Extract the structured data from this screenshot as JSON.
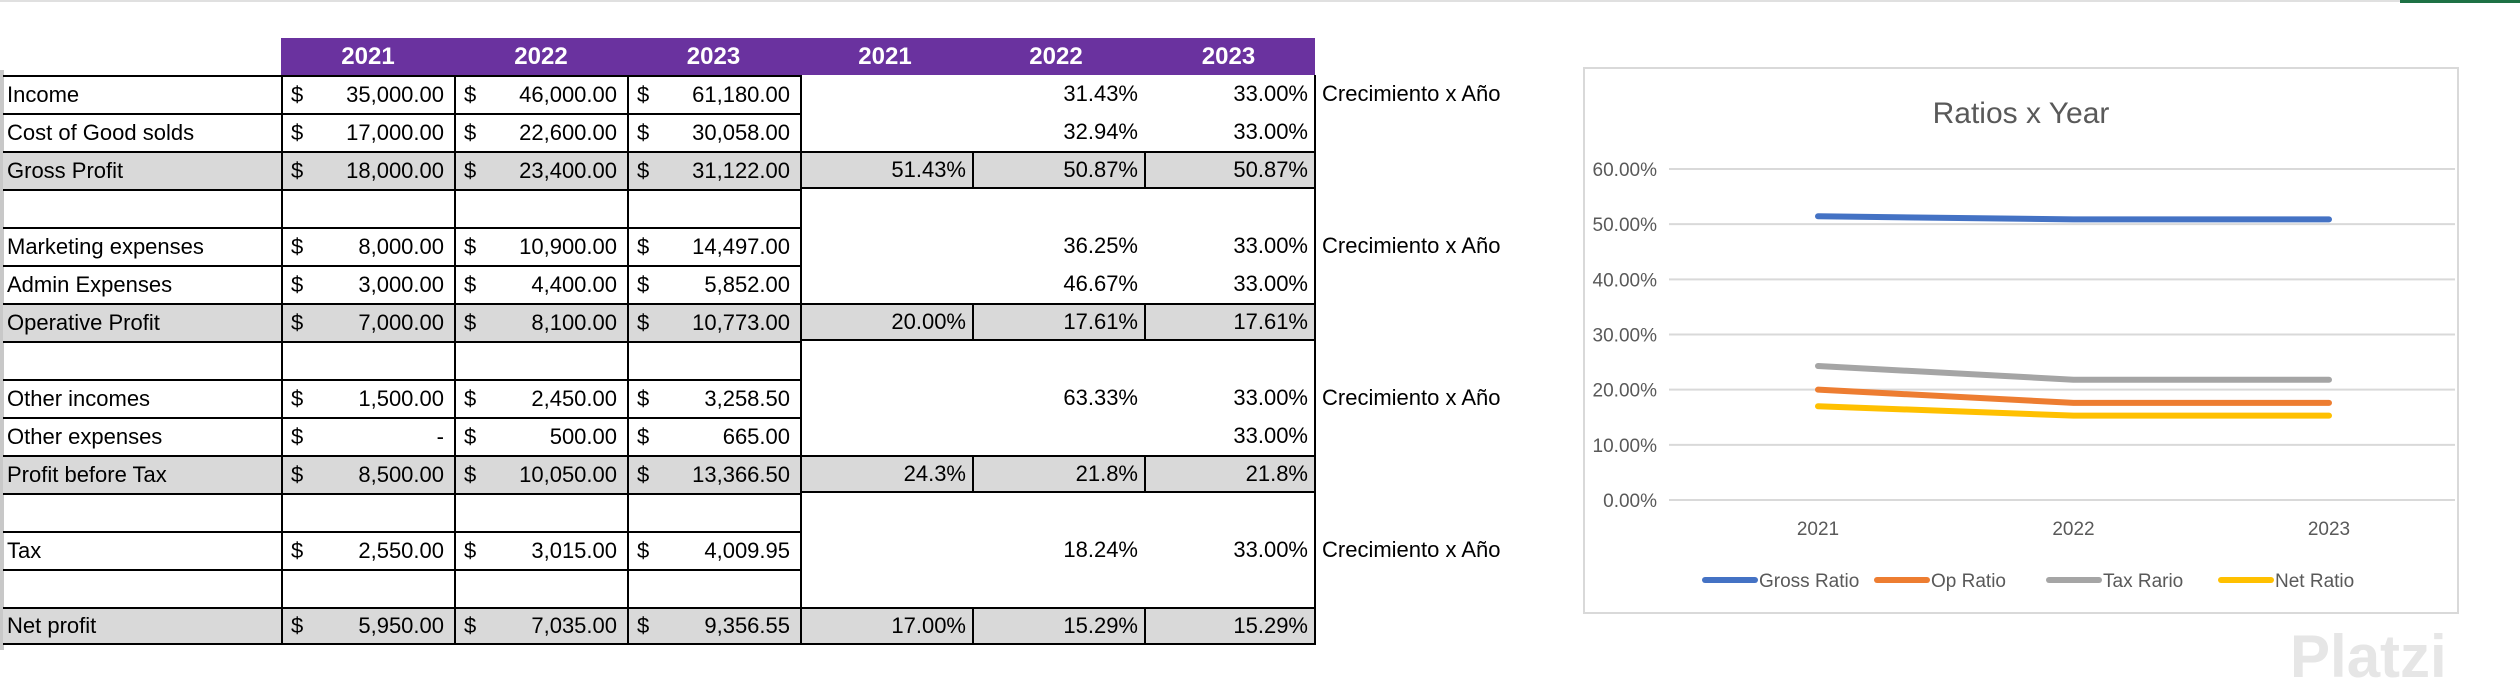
{
  "header": {
    "years": [
      "2021",
      "2022",
      "2023"
    ],
    "ratio_years": [
      "2021",
      "2022",
      "2023"
    ]
  },
  "rows": [
    {
      "label": "Income",
      "v": [
        "35,000.00",
        "46,000.00",
        "61,180.00"
      ],
      "p": [
        "",
        "31.43%",
        "33.00%"
      ],
      "note": "Crecimiento x Año",
      "gray": false
    },
    {
      "label": "Cost of Good solds",
      "v": [
        "17,000.00",
        "22,600.00",
        "30,058.00"
      ],
      "p": [
        "",
        "32.94%",
        "33.00%"
      ],
      "note": "",
      "gray": false
    },
    {
      "label": "Gross Profit",
      "v": [
        "18,000.00",
        "23,400.00",
        "31,122.00"
      ],
      "p": [
        "51.43%",
        "50.87%",
        "50.87%"
      ],
      "note": "",
      "gray": true
    },
    {
      "label": "",
      "v": [
        "",
        "",
        ""
      ],
      "p": [
        "",
        "",
        ""
      ],
      "note": "",
      "gray": false,
      "blank": true
    },
    {
      "label": "Marketing expenses",
      "v": [
        "8,000.00",
        "10,900.00",
        "14,497.00"
      ],
      "p": [
        "",
        "36.25%",
        "33.00%"
      ],
      "note": "Crecimiento x Año",
      "gray": false
    },
    {
      "label": "Admin Expenses",
      "v": [
        "3,000.00",
        "4,400.00",
        "5,852.00"
      ],
      "p": [
        "",
        "46.67%",
        "33.00%"
      ],
      "note": "",
      "gray": false
    },
    {
      "label": "Operative Profit",
      "v": [
        "7,000.00",
        "8,100.00",
        "10,773.00"
      ],
      "p": [
        "20.00%",
        "17.61%",
        "17.61%"
      ],
      "note": "",
      "gray": true
    },
    {
      "label": "",
      "v": [
        "",
        "",
        ""
      ],
      "p": [
        "",
        "",
        ""
      ],
      "note": "",
      "gray": false,
      "blank": true
    },
    {
      "label": "Other incomes",
      "v": [
        "1,500.00",
        "2,450.00",
        "3,258.50"
      ],
      "p": [
        "",
        "63.33%",
        "33.00%"
      ],
      "note": "Crecimiento x Año",
      "gray": false
    },
    {
      "label": "Other expenses",
      "v": [
        "-",
        "500.00",
        "665.00"
      ],
      "p": [
        "",
        "",
        "33.00%"
      ],
      "note": "",
      "gray": false
    },
    {
      "label": "Profit before Tax",
      "v": [
        "8,500.00",
        "10,050.00",
        "13,366.50"
      ],
      "p": [
        "24.3%",
        "21.8%",
        "21.8%"
      ],
      "note": "",
      "gray": true
    },
    {
      "label": "",
      "v": [
        "",
        "",
        ""
      ],
      "p": [
        "",
        "",
        ""
      ],
      "note": "",
      "gray": false,
      "blank": true
    },
    {
      "label": "Tax",
      "v": [
        "2,550.00",
        "3,015.00",
        "4,009.95"
      ],
      "p": [
        "",
        "18.24%",
        "33.00%"
      ],
      "note": "Crecimiento x Año",
      "gray": false
    },
    {
      "label": "",
      "v": [
        "",
        "",
        ""
      ],
      "p": [
        "",
        "",
        ""
      ],
      "note": "",
      "gray": false,
      "blank": true
    },
    {
      "label": "Net profit",
      "v": [
        "5,950.00",
        "7,035.00",
        "9,356.55"
      ],
      "p": [
        "17.00%",
        "15.29%",
        "15.29%"
      ],
      "note": "",
      "gray": true
    }
  ],
  "currency_symbol": "$",
  "watermark": "Platzi",
  "chart_data": {
    "type": "line",
    "title": "Ratios x Year",
    "categories": [
      "2021",
      "2022",
      "2023"
    ],
    "yticks": [
      "0.00%",
      "10.00%",
      "20.00%",
      "30.00%",
      "40.00%",
      "50.00%",
      "60.00%"
    ],
    "ylim": [
      0,
      60
    ],
    "grid": true,
    "legend": "bottom",
    "series": [
      {
        "name": "Gross Ratio",
        "color": "#4472c4",
        "values": [
          51.43,
          50.87,
          50.87
        ]
      },
      {
        "name": "Op Ratio",
        "color": "#ed7d31",
        "values": [
          20.0,
          17.61,
          17.61
        ]
      },
      {
        "name": "Tax Rario",
        "color": "#a5a5a5",
        "values": [
          24.3,
          21.8,
          21.8
        ]
      },
      {
        "name": "Net Ratio",
        "color": "#ffc000",
        "values": [
          17.0,
          15.29,
          15.29
        ]
      }
    ]
  }
}
